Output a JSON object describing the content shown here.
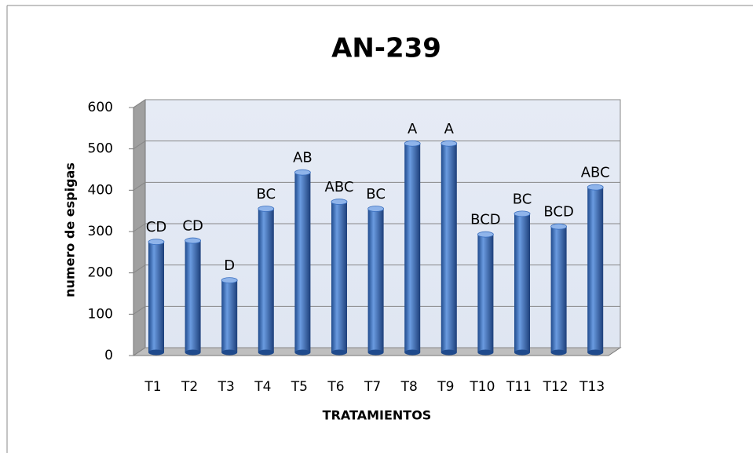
{
  "chart_data": {
    "type": "bar",
    "title": "AN-239",
    "categories": [
      "T1",
      "T2",
      "T3",
      "T4",
      "T5",
      "T6",
      "T7",
      "T8",
      "T9",
      "T10",
      "T11",
      "T12",
      "T13"
    ],
    "values": [
      275,
      278,
      182,
      355,
      443,
      372,
      355,
      513,
      513,
      293,
      343,
      312,
      407
    ],
    "bar_labels": [
      "CD",
      "CD",
      "D",
      "BC",
      "AB",
      "ABC",
      "BC",
      "A",
      "A",
      "BCD",
      "BC",
      "BCD",
      "ABC"
    ],
    "color": "#3a6fbf",
    "x_label": "TRATAMIENTOS",
    "y_label": "numero de espigas",
    "ylim": [
      0,
      600
    ],
    "yticks": [
      0,
      100,
      200,
      300,
      400,
      500,
      600
    ],
    "grid": true
  }
}
